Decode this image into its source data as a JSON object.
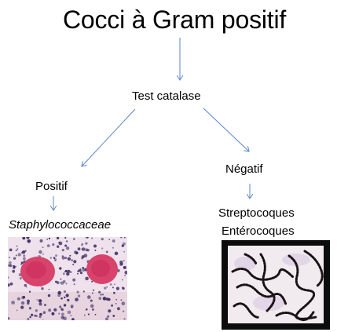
{
  "diagram": {
    "title": "Cocci à Gram positif",
    "test": "Test catalase",
    "positive_branch": {
      "result": "Positif",
      "family": "Staphylococcaceae"
    },
    "negative_branch": {
      "result": "Négatif",
      "group_1": "Streptocoques",
      "group_2": "Entérocoques"
    }
  },
  "colors": {
    "arrow": "#5b86c6",
    "text": "#000000",
    "staph_cells": "#d8436b",
    "stain_background": "#efe2ec",
    "strep_chains": "#1a1316"
  },
  "icons": [
    "staphylococcus-micrograph",
    "streptococcus-micrograph"
  ]
}
